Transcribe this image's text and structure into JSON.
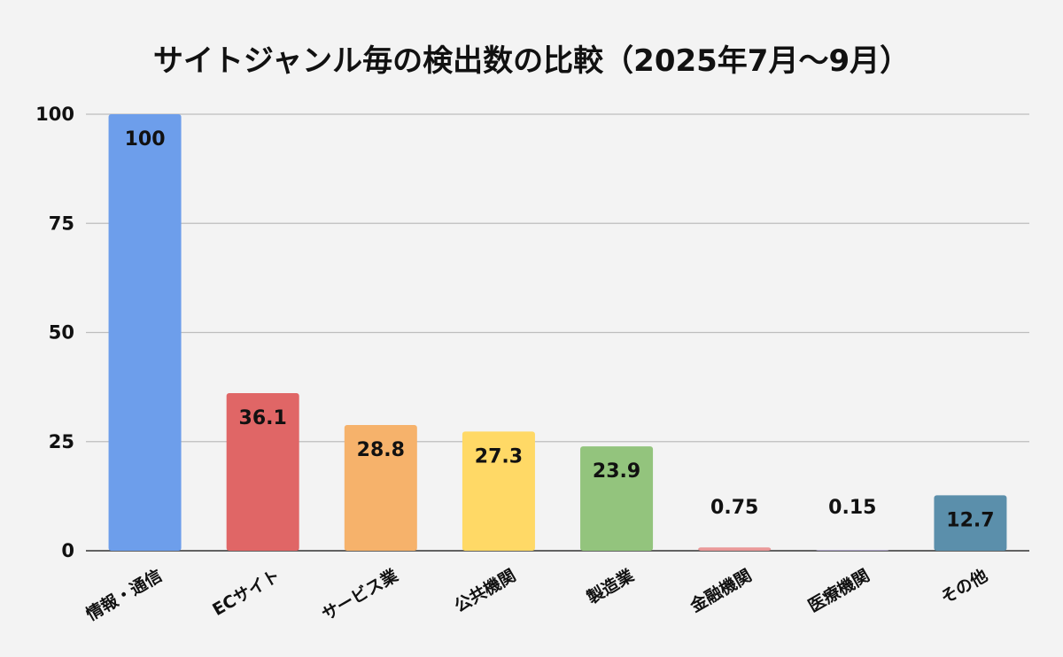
{
  "chart_data": {
    "type": "bar",
    "title": "サイトジャンル毎の検出数の比較（2025年7月～9月）",
    "xlabel": "",
    "ylabel": "",
    "categories": [
      "情報・通信",
      "ECサイト",
      "サービス業",
      "公共機関",
      "製造業",
      "金融機関",
      "医療機関",
      "その他"
    ],
    "values": [
      100,
      36.1,
      28.8,
      27.3,
      23.9,
      0.75,
      0.15,
      12.7
    ],
    "value_labels": [
      "100",
      "36.1",
      "28.8",
      "27.3",
      "23.9",
      "0.75",
      "0.15",
      "12.7"
    ],
    "colors": [
      "#6d9eeb",
      "#e06666",
      "#f6b26b",
      "#ffd966",
      "#93c47d",
      "#ea9999",
      "#b4a7d6",
      "#5b8fab"
    ],
    "ylim": [
      0,
      100
    ],
    "yticks": [
      0,
      25,
      50,
      75,
      100
    ],
    "ytick_labels": [
      "0",
      "25",
      "50",
      "75",
      "100"
    ],
    "grid": true,
    "legend": "none"
  }
}
